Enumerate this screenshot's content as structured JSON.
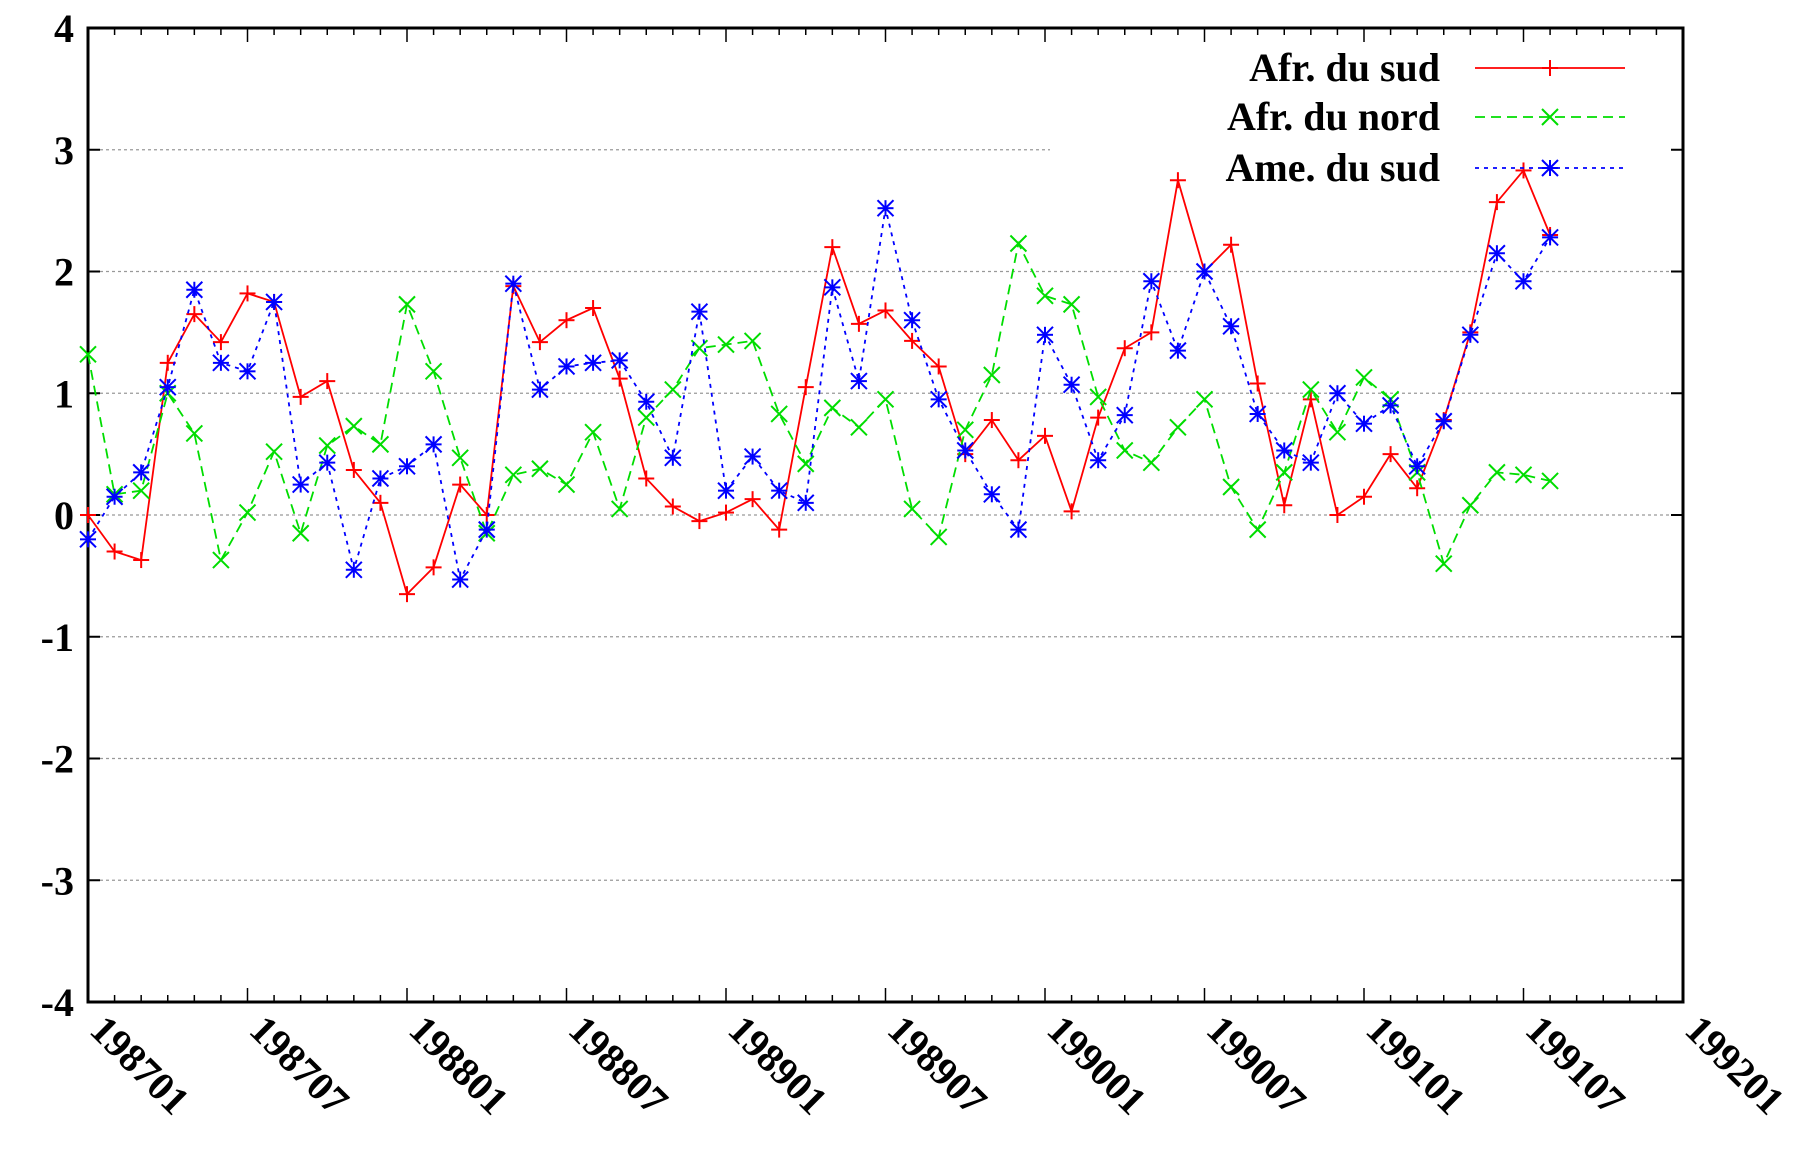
{
  "chart_data": {
    "type": "line",
    "title": "",
    "xlabel": "",
    "ylabel": "",
    "ylim": [
      -4,
      4
    ],
    "yticks": [
      -4,
      -3,
      -2,
      -1,
      0,
      1,
      2,
      3,
      4
    ],
    "xticks": [
      "198701",
      "198707",
      "198801",
      "198807",
      "198901",
      "198907",
      "199001",
      "199007",
      "199101",
      "199107",
      "199201"
    ],
    "grid": true,
    "legend_position": "top-right",
    "x": [
      "198701",
      "198702",
      "198703",
      "198704",
      "198705",
      "198706",
      "198707",
      "198708",
      "198709",
      "198710",
      "198711",
      "198712",
      "198801",
      "198802",
      "198803",
      "198804",
      "198805",
      "198806",
      "198807",
      "198808",
      "198809",
      "198810",
      "198811",
      "198812",
      "198901",
      "198902",
      "198903",
      "198904",
      "198905",
      "198906",
      "198907",
      "198908",
      "198909",
      "198910",
      "198911",
      "198912",
      "199001",
      "199002",
      "199003",
      "199004",
      "199005",
      "199006",
      "199007",
      "199008",
      "199009",
      "199010",
      "199011",
      "199012",
      "199101",
      "199102",
      "199103",
      "199104",
      "199105",
      "199106",
      "199107",
      "199108"
    ],
    "series": [
      {
        "name": "Afr. du sud",
        "color": "#ff0000",
        "dash": "solid",
        "marker": "plus",
        "values": [
          0.0,
          -0.3,
          -0.37,
          1.25,
          1.65,
          1.42,
          1.82,
          1.75,
          0.97,
          1.1,
          0.37,
          0.1,
          -0.65,
          -0.43,
          0.25,
          0.0,
          1.88,
          1.42,
          1.6,
          1.7,
          1.12,
          0.3,
          0.07,
          -0.05,
          0.02,
          0.13,
          -0.12,
          1.05,
          2.2,
          1.57,
          1.68,
          1.43,
          1.22,
          0.5,
          0.78,
          0.45,
          0.65,
          0.03,
          0.8,
          1.37,
          1.5,
          2.75,
          2.0,
          2.22,
          1.08,
          0.08,
          0.95,
          0.0,
          0.15,
          0.5,
          0.22,
          0.78,
          1.5,
          2.57,
          2.83,
          2.3
        ]
      },
      {
        "name": "Afr. du nord",
        "color": "#00dd00",
        "dash": "dashed",
        "marker": "x",
        "values": [
          1.32,
          0.17,
          0.2,
          1.0,
          0.67,
          -0.37,
          0.02,
          0.52,
          -0.15,
          0.57,
          0.73,
          0.58,
          1.73,
          1.18,
          0.47,
          -0.15,
          0.33,
          0.38,
          0.25,
          0.68,
          0.05,
          0.8,
          1.03,
          1.37,
          1.4,
          1.43,
          0.83,
          0.42,
          0.88,
          0.72,
          0.95,
          0.05,
          -0.18,
          0.7,
          1.15,
          2.23,
          1.8,
          1.73,
          0.97,
          0.53,
          0.43,
          0.72,
          0.95,
          0.23,
          -0.12,
          0.35,
          1.03,
          0.68,
          1.13,
          0.95,
          0.35,
          -0.4,
          0.08,
          0.35,
          0.33,
          0.28
        ]
      },
      {
        "name": "Ame. du sud",
        "color": "#0000ff",
        "dash": "dotted",
        "marker": "star",
        "values": [
          -0.2,
          0.15,
          0.35,
          1.05,
          1.85,
          1.25,
          1.18,
          1.75,
          0.25,
          0.43,
          -0.45,
          0.3,
          0.4,
          0.58,
          -0.53,
          -0.12,
          1.9,
          1.03,
          1.22,
          1.25,
          1.27,
          0.93,
          0.47,
          1.67,
          0.2,
          0.48,
          0.2,
          0.1,
          1.87,
          1.1,
          2.52,
          1.6,
          0.95,
          0.53,
          0.17,
          -0.12,
          1.48,
          1.07,
          0.45,
          0.82,
          1.92,
          1.35,
          2.0,
          1.55,
          0.83,
          0.53,
          0.43,
          1.0,
          0.75,
          0.9,
          0.4,
          0.77,
          1.48,
          2.15,
          1.92,
          2.28
        ]
      }
    ]
  }
}
